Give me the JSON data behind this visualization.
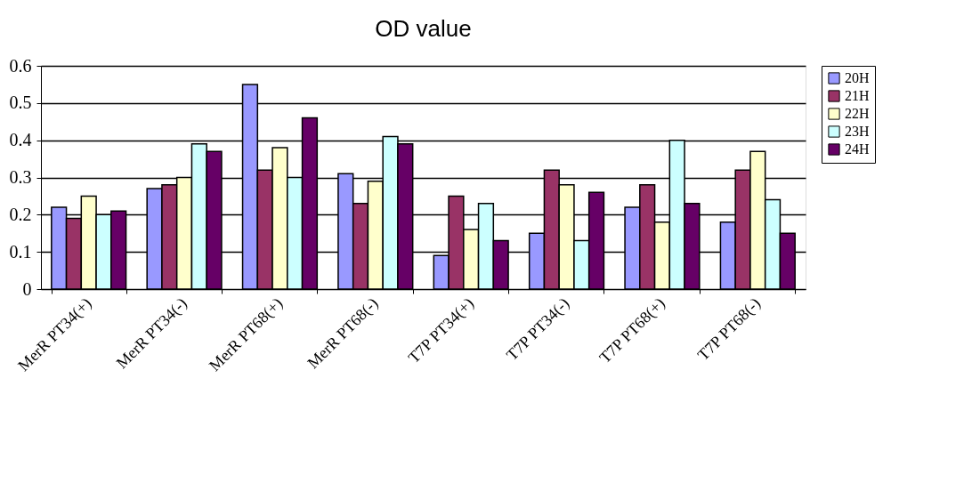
{
  "chart_data": {
    "type": "bar",
    "title": "OD value",
    "categories": [
      "MerR PT34(+)",
      "MerR PT34(-)",
      "MerR PT68(+)",
      "MerR PT68(-)",
      "T7P PT34(+)",
      "T7P PT34(-)",
      "T7P PT68(+)",
      "T7P PT68(-)"
    ],
    "series": [
      {
        "name": "20H",
        "color": "#9999ff",
        "values": [
          0.22,
          0.27,
          0.55,
          0.31,
          0.09,
          0.15,
          0.22,
          0.18
        ]
      },
      {
        "name": "21H",
        "color": "#993366",
        "values": [
          0.19,
          0.28,
          0.32,
          0.23,
          0.25,
          0.32,
          0.28,
          0.32
        ]
      },
      {
        "name": "22H",
        "color": "#ffffcc",
        "values": [
          0.25,
          0.3,
          0.38,
          0.29,
          0.16,
          0.28,
          0.18,
          0.37
        ]
      },
      {
        "name": "23H",
        "color": "#ccffff",
        "values": [
          0.2,
          0.39,
          0.3,
          0.41,
          0.23,
          0.13,
          0.4,
          0.24
        ]
      },
      {
        "name": "24H",
        "color": "#660066",
        "values": [
          0.21,
          0.37,
          0.46,
          0.39,
          0.13,
          0.26,
          0.23,
          0.15
        ]
      }
    ],
    "ylim": [
      0,
      0.6
    ],
    "yticks": [
      0,
      0.1,
      0.2,
      0.3,
      0.4,
      0.5,
      0.6
    ],
    "grid": "y",
    "legend": "right"
  }
}
